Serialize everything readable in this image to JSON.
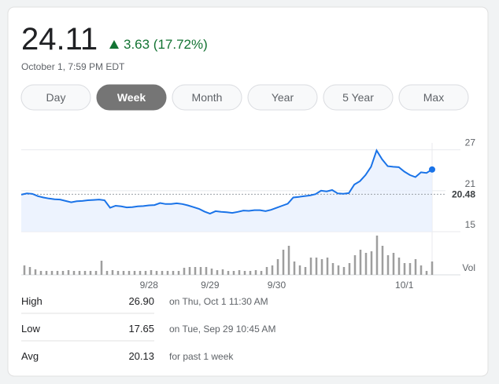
{
  "header": {
    "price": "24.11",
    "change": "3.63 (17.72%)",
    "timestamp": "October 1, 7:59 PM EDT"
  },
  "range_buttons": {
    "labels": [
      "Day",
      "Week",
      "Month",
      "Year",
      "5 Year",
      "Max"
    ],
    "selected": "Week"
  },
  "chart_data": [
    {
      "type": "line",
      "color": "#1a73e8",
      "categories": [
        null,
        null,
        null,
        null,
        null,
        null,
        null,
        null,
        null,
        null,
        null,
        null,
        null,
        null,
        null,
        null,
        null,
        null,
        null,
        null,
        null,
        null,
        null,
        "9/28",
        null,
        null,
        null,
        null,
        null,
        null,
        null,
        null,
        null,
        null,
        "9/29",
        null,
        null,
        null,
        null,
        null,
        null,
        null,
        null,
        null,
        null,
        null,
        "9/30",
        null,
        null,
        null,
        null,
        null,
        null,
        null,
        null,
        null,
        null,
        null,
        null,
        null,
        null,
        null,
        null,
        null,
        null,
        null,
        null,
        null,
        null,
        "10/1",
        null,
        null,
        null,
        null,
        null
      ],
      "values": [
        20.42,
        20.6,
        20.55,
        20.2,
        20.0,
        19.85,
        19.75,
        19.7,
        19.5,
        19.3,
        19.45,
        19.5,
        19.6,
        19.65,
        19.7,
        19.6,
        18.5,
        18.8,
        18.7,
        18.55,
        18.6,
        18.7,
        18.75,
        18.85,
        18.9,
        19.2,
        19.05,
        19.05,
        19.15,
        19.05,
        18.85,
        18.6,
        18.35,
        17.95,
        17.65,
        18.0,
        17.9,
        17.85,
        17.75,
        17.9,
        18.1,
        18.05,
        18.15,
        18.15,
        18.0,
        18.2,
        18.5,
        18.8,
        19.1,
        20.0,
        20.1,
        20.2,
        20.3,
        20.5,
        21.0,
        20.9,
        21.1,
        20.6,
        20.55,
        20.65,
        21.9,
        22.4,
        23.3,
        24.5,
        26.9,
        25.6,
        24.6,
        24.5,
        24.45,
        23.8,
        23.3,
        23.0,
        23.7,
        23.6,
        24.11
      ],
      "ylim": [
        15,
        28
      ],
      "yticks": [
        27,
        21,
        15
      ],
      "reference_line": 20.48,
      "grid": true
    },
    {
      "type": "bar",
      "label": "Vol",
      "color": "#9e9e9e",
      "values": [
        12,
        10,
        7,
        5,
        5,
        5,
        5,
        5,
        6,
        5,
        5,
        5,
        5,
        5,
        18,
        5,
        6,
        5,
        5,
        5,
        5,
        5,
        5,
        6,
        5,
        5,
        5,
        5,
        5,
        9,
        10,
        10,
        10,
        10,
        8,
        6,
        7,
        5,
        5,
        6,
        5,
        5,
        6,
        5,
        10,
        12,
        20,
        32,
        37,
        17,
        12,
        10,
        22,
        22,
        20,
        22,
        15,
        12,
        10,
        15,
        25,
        32,
        28,
        30,
        50,
        37,
        25,
        28,
        22,
        15,
        15,
        20,
        12,
        5,
        17
      ],
      "ylim": [
        0,
        60
      ]
    }
  ],
  "stats": {
    "rows": [
      [
        "High",
        "26.90",
        "on Thu, Oct 1 11:30 AM"
      ],
      [
        "Low",
        "17.65",
        "on Tue, Sep 29 10:45 AM"
      ],
      [
        "Avg",
        "20.13",
        "for past 1 week"
      ]
    ]
  }
}
